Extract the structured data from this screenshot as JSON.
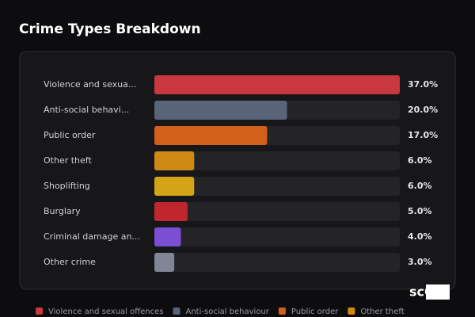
{
  "chart_data": {
    "type": "bar",
    "orientation": "horizontal",
    "title": "Crime Types Breakdown",
    "categories": [
      "Violence and sexua...",
      "Anti-social behavi...",
      "Public order",
      "Other theft",
      "Shoplifting",
      "Burglary",
      "Criminal damage an...",
      "Other crime"
    ],
    "values": [
      37.0,
      20.0,
      17.0,
      6.0,
      6.0,
      5.0,
      4.0,
      3.0
    ],
    "value_labels": [
      "37.0%",
      "20.0%",
      "17.0%",
      "6.0%",
      "6.0%",
      "5.0%",
      "4.0%",
      "3.0%"
    ],
    "colors": [
      "#c9383f",
      "#5a6478",
      "#d2601a",
      "#cf8a14",
      "#d4a317",
      "#c0262b",
      "#7a4fd3",
      "#7f8797"
    ],
    "xlim": [
      0,
      37
    ],
    "legend": [
      "Violence and sexual offences",
      "Anti-social behaviour",
      "Public order",
      "Other theft"
    ]
  },
  "watermark": "scOS"
}
